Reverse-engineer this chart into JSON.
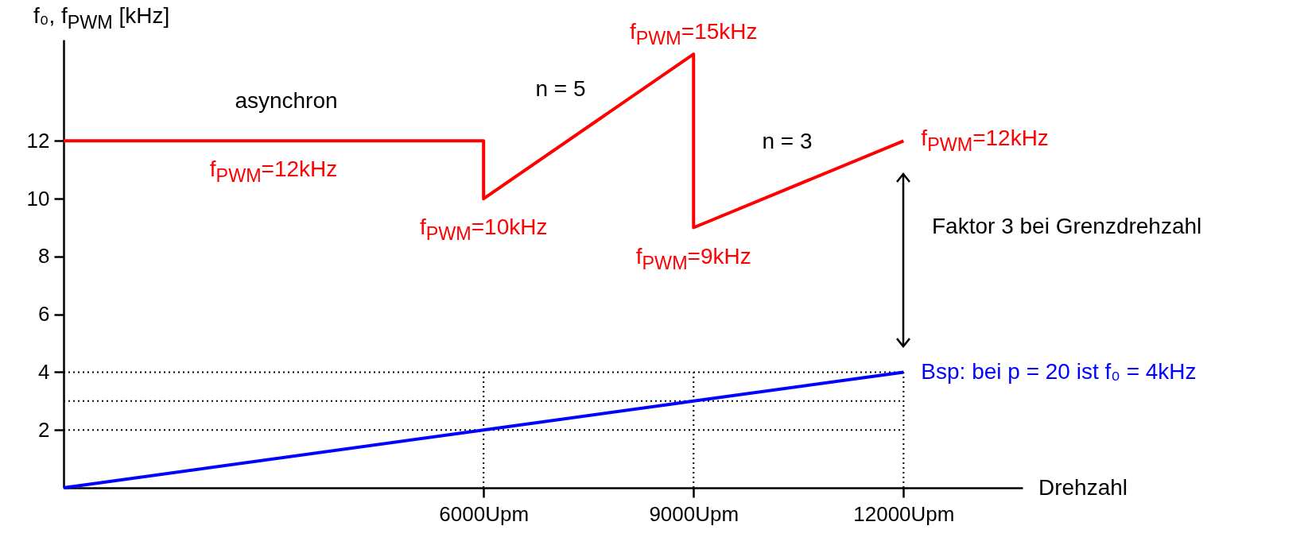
{
  "chart_data": {
    "type": "line",
    "ylabel": "f₀, f$_{PWM}$ [kHz]",
    "xlabel": "Drehzahl",
    "xlim": [
      0,
      13700
    ],
    "ylim": [
      0,
      15.5
    ],
    "xticks": [
      {
        "value": 6000,
        "label": "6000Upm"
      },
      {
        "value": 9000,
        "label": "9000Upm"
      },
      {
        "value": 12000,
        "label": "12000Upm"
      }
    ],
    "yticks": [
      2,
      4,
      6,
      8,
      10,
      12
    ],
    "grid": false,
    "marker": "none",
    "line_style": "solid",
    "series": [
      {
        "color": "#ff0000",
        "x": [
          0,
          3000,
          6000,
          6000,
          9000,
          9000,
          12000
        ],
        "values": [
          12,
          12,
          12,
          10,
          15,
          9,
          12
        ],
        "value_labels": [
          null,
          "f$_{PWM}$=12kHz",
          null,
          "f$_{PWM}$=10kHz",
          "f$_{PWM}$=15kHz",
          "f$_{PWM}$=9kHz",
          "f$_{PWM}$=12kHz"
        ]
      },
      {
        "color": "#0000ff",
        "x": [
          0,
          6000,
          9000,
          12000
        ],
        "values": [
          0,
          2,
          3,
          4
        ],
        "value_labels": [
          null,
          null,
          null,
          "Bsp: bei p = 20 ist f₀ = 4kHz"
        ]
      }
    ],
    "ref_lines": [
      {
        "axis": "y",
        "value": 2,
        "color": "#000000",
        "line_style": "dotted"
      },
      {
        "axis": "y",
        "value": 3,
        "color": "#000000",
        "line_style": "dotted"
      },
      {
        "axis": "y",
        "value": 4,
        "color": "#000000",
        "line_style": "dotted"
      },
      {
        "axis": "x",
        "value": 6000,
        "color": "#000000",
        "line_style": "dotted"
      },
      {
        "axis": "x",
        "value": 9000,
        "color": "#000000",
        "line_style": "dotted"
      },
      {
        "axis": "x",
        "value": 12000,
        "color": "#000000",
        "line_style": "dotted"
      }
    ],
    "annotations": [
      "asynchron",
      "n = 5",
      "n = 3",
      "Faktor 3 bei Grenzdrehzahl"
    ]
  }
}
